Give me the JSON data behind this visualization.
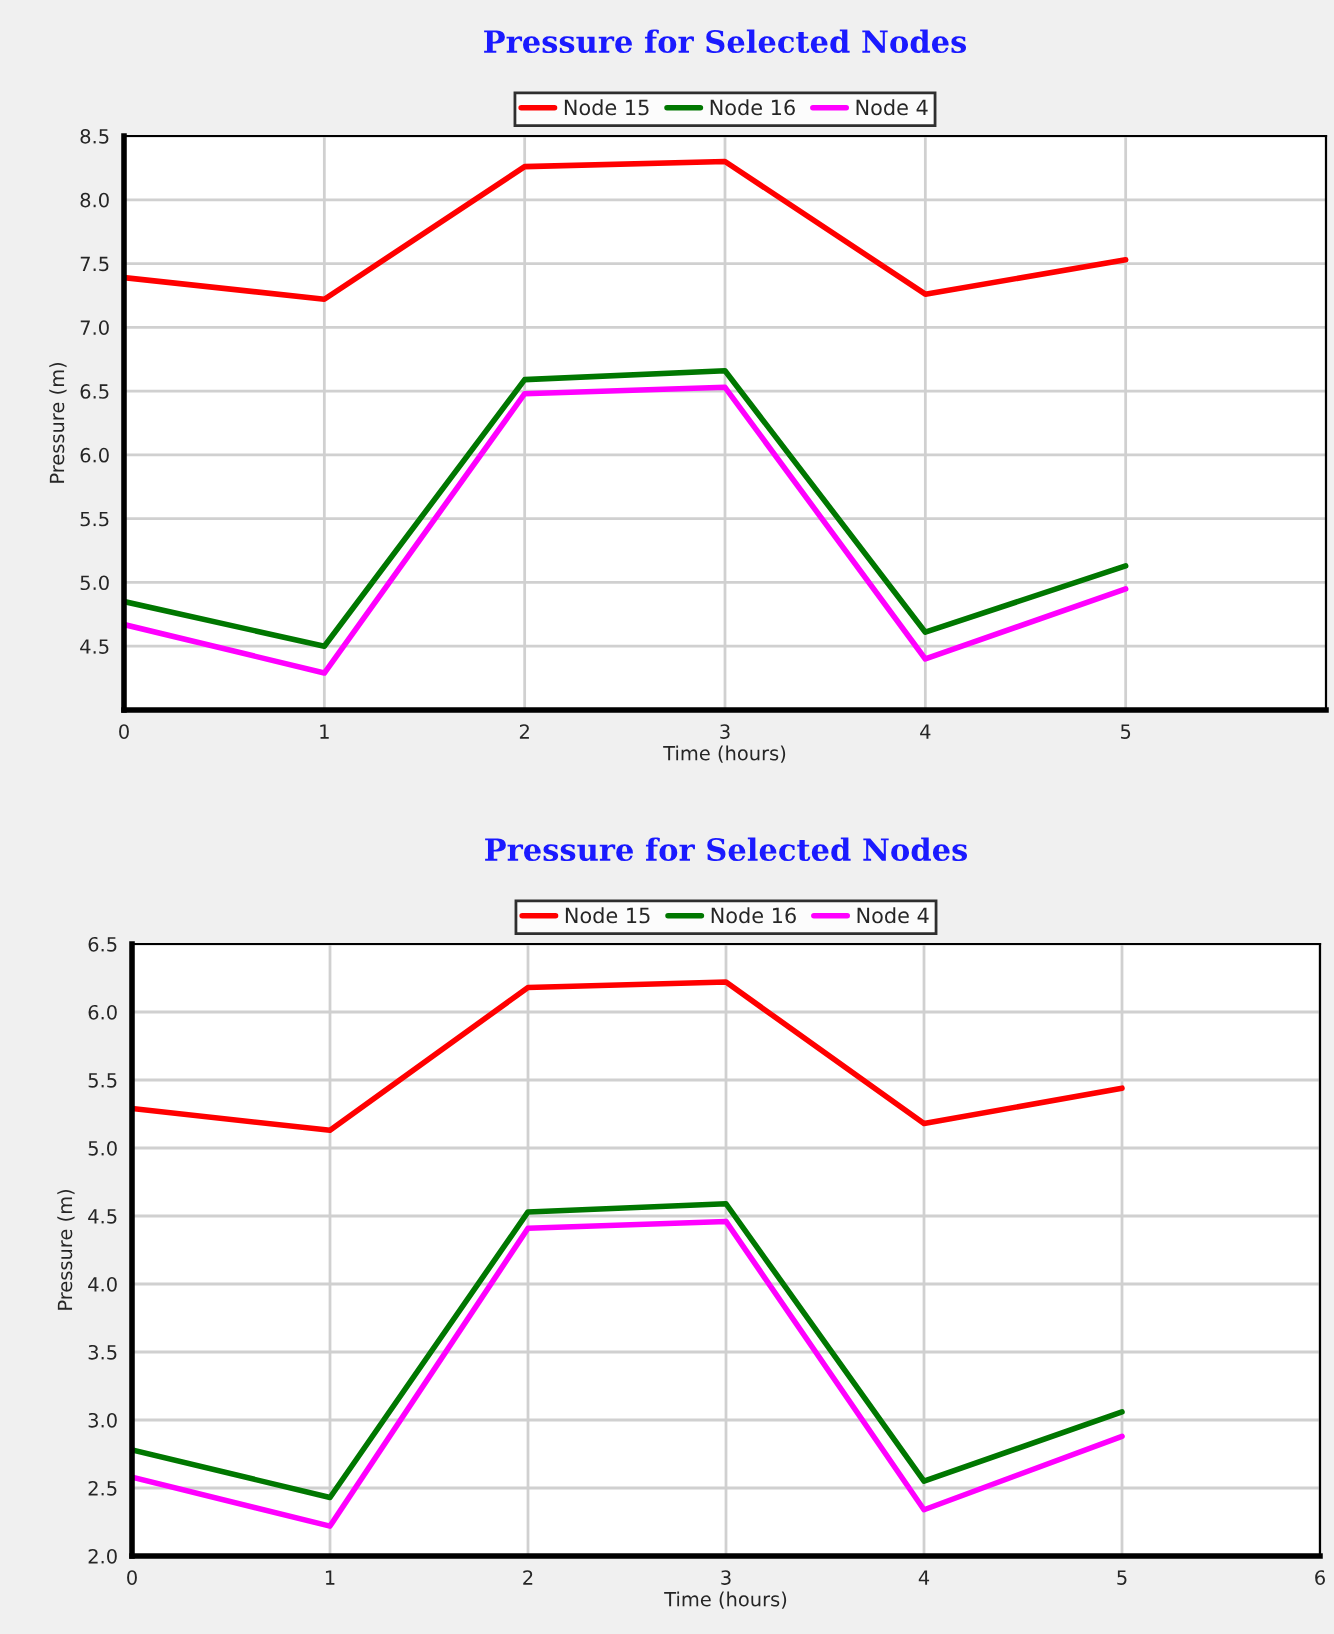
{
  "chart_data": [
    {
      "type": "line",
      "title": "Pressure for Selected Nodes",
      "xlabel": "Time (hours)",
      "ylabel": "Pressure (m)",
      "x": [
        0,
        1,
        2,
        3,
        4,
        5
      ],
      "xlim": [
        0,
        6
      ],
      "xticks": [
        0,
        1,
        2,
        3,
        4,
        5
      ],
      "ylim": [
        4.0,
        8.5
      ],
      "yticks": [
        4.5,
        {
          "value": 5,
          "label": "5.0"
        },
        5.5,
        {
          "value": 6,
          "label": "6.0"
        },
        6.5,
        {
          "value": 7,
          "label": "7.0"
        },
        7.5,
        {
          "value": 8,
          "label": "8.0"
        },
        8.5
      ],
      "grid": true,
      "legend": "top",
      "marker": "none",
      "line_style": "solid",
      "series": [
        {
          "name": "Node 15",
          "color": "#ff0000",
          "values": [
            7.39,
            7.22,
            8.26,
            8.3,
            7.26,
            7.53
          ]
        },
        {
          "name": "Node 16",
          "color": "#007700",
          "values": [
            4.85,
            4.5,
            6.59,
            6.66,
            4.61,
            5.13
          ]
        },
        {
          "name": "Node 4",
          "color": "#ff00ff",
          "values": [
            4.67,
            4.29,
            6.48,
            6.53,
            4.4,
            4.95
          ]
        }
      ]
    },
    {
      "type": "line",
      "title": "Pressure for Selected Nodes",
      "xlabel": "Time (hours)",
      "ylabel": "Pressure (m)",
      "x": [
        0,
        1,
        2,
        3,
        4,
        5
      ],
      "xlim": [
        0,
        6
      ],
      "xticks": [
        0,
        1,
        2,
        3,
        4,
        5,
        6
      ],
      "ylim": [
        2.0,
        6.5
      ],
      "yticks": [
        {
          "value": 2,
          "label": "2.0"
        },
        2.5,
        {
          "value": 3,
          "label": "3.0"
        },
        3.5,
        {
          "value": 4,
          "label": "4.0"
        },
        4.5,
        {
          "value": 5,
          "label": "5.0"
        },
        5.5,
        {
          "value": 6,
          "label": "6.0"
        },
        6.5
      ],
      "grid": true,
      "legend": "top",
      "marker": "none",
      "line_style": "solid",
      "series": [
        {
          "name": "Node 15",
          "color": "#ff0000",
          "values": [
            5.29,
            5.13,
            6.18,
            6.22,
            5.18,
            5.44
          ]
        },
        {
          "name": "Node 16",
          "color": "#007700",
          "values": [
            2.78,
            2.43,
            4.53,
            4.59,
            2.55,
            3.06
          ]
        },
        {
          "name": "Node 4",
          "color": "#ff00ff",
          "values": [
            2.58,
            2.22,
            4.41,
            4.46,
            2.34,
            2.88
          ]
        }
      ]
    }
  ]
}
